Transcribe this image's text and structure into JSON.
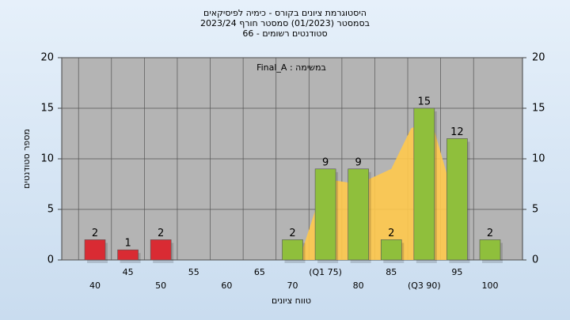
{
  "chart_data": {
    "type": "bar",
    "title": "היסטוגרמת ציונים בקורס - כימיה לפיסיקאים",
    "subtitle": "בסמסטר  (01/2023)  סמסטר חורף 2023/24",
    "subtitle2": "סטודנטים רשומים - 66",
    "annotation": "Final_A : במשימה",
    "x_label": "טווח ציונים",
    "y_label": "מספר סטודנטים",
    "categories": [
      "40",
      "45",
      "50",
      "55",
      "60",
      "65",
      "70",
      "(Q1 75)",
      "80",
      "85",
      "(Q3 90)",
      "95",
      "100"
    ],
    "series": [
      {
        "color": "#d92b33",
        "values": [
          2,
          1,
          2,
          null,
          null,
          null,
          null,
          null,
          null,
          null,
          null,
          null,
          null
        ]
      },
      {
        "color": "#8fbf3c",
        "values": [
          null,
          null,
          null,
          null,
          null,
          null,
          2,
          9,
          9,
          2,
          15,
          12,
          2
        ]
      }
    ],
    "curve": {
      "color": "#ffc94d",
      "x": [
        71,
        75,
        80,
        85,
        88,
        91,
        95
      ],
      "values": [
        0,
        8,
        7.5,
        9,
        13,
        14,
        5
      ]
    },
    "ylim": [
      0,
      20
    ],
    "yticks": [
      0,
      5,
      10,
      15,
      20
    ],
    "y2lim": [
      0,
      20
    ],
    "y2ticks": [
      0,
      5,
      10,
      15,
      20
    ],
    "grid": true
  }
}
